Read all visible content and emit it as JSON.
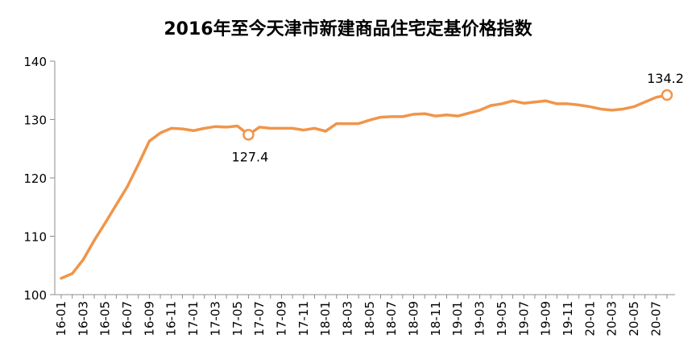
{
  "chart_data": {
    "type": "line",
    "title": "2016年至今天津市新建商品住宅定基价格指数",
    "xlabel": "",
    "ylabel": "",
    "ylim": [
      100,
      140
    ],
    "yticks": [
      100,
      110,
      120,
      130,
      140
    ],
    "grid": false,
    "legend": "none",
    "colors": {
      "line": "#F0954A",
      "axis": "#8C8C8C"
    },
    "x": [
      "16-01",
      "16-02",
      "16-03",
      "16-04",
      "16-05",
      "16-06",
      "16-07",
      "16-08",
      "16-09",
      "16-10",
      "16-11",
      "16-12",
      "17-01",
      "17-02",
      "17-03",
      "17-04",
      "17-05",
      "17-06",
      "17-07",
      "17-08",
      "17-09",
      "17-10",
      "17-11",
      "17-12",
      "18-01",
      "18-02",
      "18-03",
      "18-04",
      "18-05",
      "18-06",
      "18-07",
      "18-08",
      "18-09",
      "18-10",
      "18-11",
      "18-12",
      "19-01",
      "19-02",
      "19-03",
      "19-04",
      "19-05",
      "19-06",
      "19-07",
      "19-08",
      "19-09",
      "19-10",
      "19-11",
      "19-12",
      "20-01",
      "20-02",
      "20-03",
      "20-04",
      "20-05",
      "20-06",
      "20-07",
      "20-08"
    ],
    "x_tick_labels": [
      "16-01",
      "16-03",
      "16-05",
      "16-07",
      "16-09",
      "16-11",
      "17-01",
      "17-03",
      "17-05",
      "17-07",
      "17-09",
      "17-11",
      "18-01",
      "18-03",
      "18-05",
      "18-07",
      "18-09",
      "18-11",
      "19-01",
      "19-03",
      "19-05",
      "19-07",
      "19-09",
      "19-11",
      "20-01",
      "20-03",
      "20-05",
      "20-07"
    ],
    "series": [
      {
        "values": [
          102.8,
          103.6,
          106.0,
          109.3,
          112.3,
          115.4,
          118.5,
          122.3,
          126.3,
          127.7,
          128.5,
          128.4,
          128.1,
          128.5,
          128.8,
          128.7,
          128.9,
          127.4,
          128.7,
          128.5,
          128.5,
          128.5,
          128.2,
          128.5,
          128.0,
          129.3,
          129.3,
          129.3,
          129.9,
          130.4,
          130.5,
          130.5,
          130.9,
          131.0,
          130.6,
          130.8,
          130.6,
          131.1,
          131.6,
          132.4,
          132.7,
          133.2,
          132.8,
          133.0,
          133.2,
          132.7,
          132.7,
          132.5,
          132.2,
          131.8,
          131.6,
          131.8,
          132.2,
          133.0,
          133.8,
          134.2
        ]
      }
    ],
    "annotations": [
      {
        "x": "17-06",
        "value": "127.4"
      },
      {
        "x": "20-08",
        "value": "134.2"
      }
    ]
  }
}
